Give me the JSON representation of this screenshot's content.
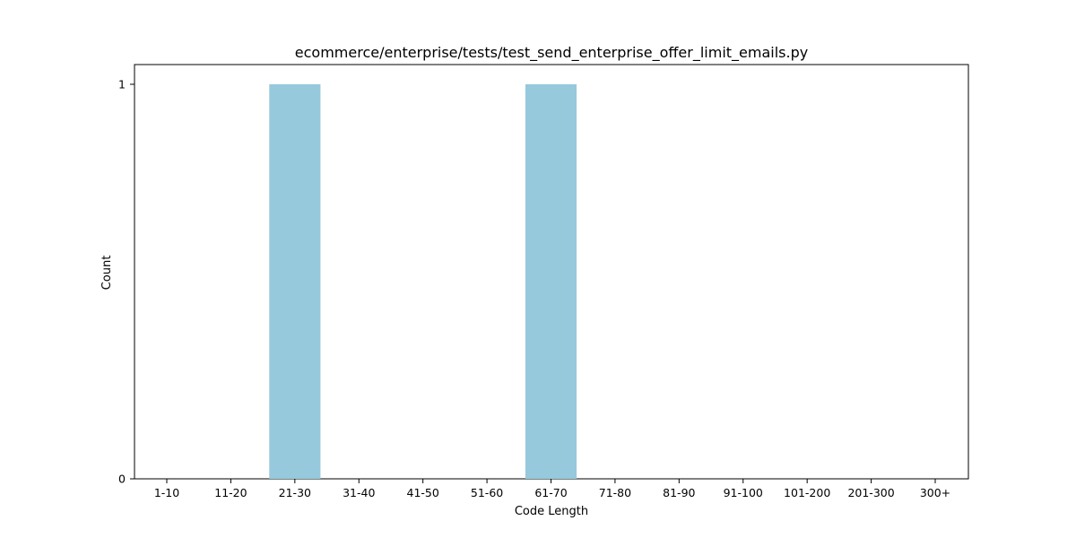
{
  "chart_data": {
    "type": "bar",
    "title": "ecommerce/enterprise/tests/test_send_enterprise_offer_limit_emails.py",
    "xlabel": "Code Length",
    "ylabel": "Count",
    "categories": [
      "1-10",
      "11-20",
      "21-30",
      "31-40",
      "41-50",
      "51-60",
      "61-70",
      "71-80",
      "81-90",
      "91-100",
      "101-200",
      "201-300",
      "300+"
    ],
    "values": [
      0,
      0,
      1,
      0,
      0,
      0,
      1,
      0,
      0,
      0,
      0,
      0,
      0
    ],
    "ylim": [
      0,
      1
    ],
    "yticks": [
      0,
      1
    ],
    "bar_color": "#96c9dc",
    "grid": false,
    "legend": "none"
  }
}
